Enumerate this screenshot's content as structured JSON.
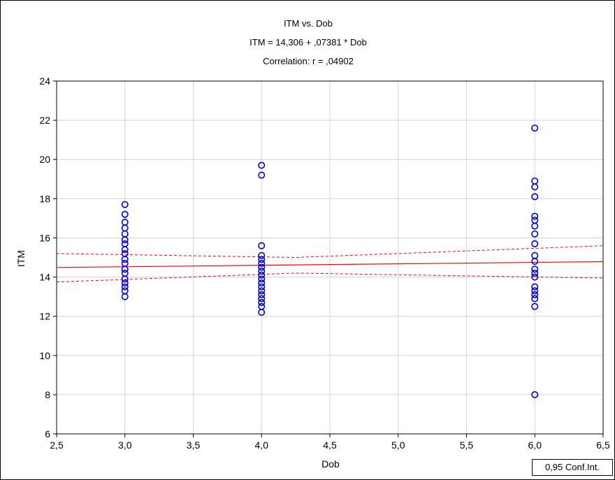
{
  "chart_data": {
    "type": "scatter",
    "title": "ITM      vs. Dob",
    "subtitle": "ITM      = 14,306 + ,07381 * Dob",
    "correlation": "Correlation: r = ,04902",
    "xlabel": "Dob",
    "ylabel": "ITM",
    "xlim": [
      2.5,
      6.5
    ],
    "ylim": [
      6,
      24
    ],
    "x_ticks": [
      2.5,
      3.0,
      3.5,
      4.0,
      4.5,
      5.0,
      5.5,
      6.0,
      6.5
    ],
    "x_tick_labels": [
      "2,5",
      "3,0",
      "3,5",
      "4,0",
      "4,5",
      "5,0",
      "5,5",
      "6,0",
      "6,5"
    ],
    "y_ticks": [
      6,
      8,
      10,
      12,
      14,
      16,
      18,
      20,
      22,
      24
    ],
    "y_tick_labels": [
      "6",
      "8",
      "10",
      "12",
      "14",
      "16",
      "18",
      "20",
      "22",
      "24"
    ],
    "grid": true,
    "legend": "bottom-right",
    "legend_label": "0,95 Conf.Int.",
    "points_color": "#0000cc",
    "fit_color": "#ff0000",
    "fit": {
      "intercept": 14.306,
      "slope": 0.07381
    },
    "conf_upper": [
      [
        2.5,
        15.2
      ],
      [
        4.25,
        15.0
      ],
      [
        6.5,
        15.6
      ]
    ],
    "conf_lower": [
      [
        2.5,
        13.75
      ],
      [
        4.25,
        14.2
      ],
      [
        6.5,
        13.95
      ]
    ],
    "points": [
      {
        "x": 3,
        "y": 17.7
      },
      {
        "x": 3,
        "y": 17.2
      },
      {
        "x": 3,
        "y": 16.8
      },
      {
        "x": 3,
        "y": 16.5
      },
      {
        "x": 3,
        "y": 16.2
      },
      {
        "x": 3,
        "y": 15.9
      },
      {
        "x": 3,
        "y": 15.7
      },
      {
        "x": 3,
        "y": 15.4
      },
      {
        "x": 3,
        "y": 15.2
      },
      {
        "x": 3,
        "y": 14.9
      },
      {
        "x": 3,
        "y": 14.7
      },
      {
        "x": 3,
        "y": 14.4
      },
      {
        "x": 3,
        "y": 14.2
      },
      {
        "x": 3,
        "y": 13.9
      },
      {
        "x": 3,
        "y": 13.7
      },
      {
        "x": 3,
        "y": 13.5
      },
      {
        "x": 3,
        "y": 13.3
      },
      {
        "x": 3,
        "y": 13.0
      },
      {
        "x": 4,
        "y": 19.7
      },
      {
        "x": 4,
        "y": 19.2
      },
      {
        "x": 4,
        "y": 15.6
      },
      {
        "x": 4,
        "y": 15.1
      },
      {
        "x": 4,
        "y": 14.9
      },
      {
        "x": 4,
        "y": 14.7
      },
      {
        "x": 4,
        "y": 14.5
      },
      {
        "x": 4,
        "y": 14.3
      },
      {
        "x": 4,
        "y": 14.1
      },
      {
        "x": 4,
        "y": 13.9
      },
      {
        "x": 4,
        "y": 13.7
      },
      {
        "x": 4,
        "y": 13.5
      },
      {
        "x": 4,
        "y": 13.3
      },
      {
        "x": 4,
        "y": 13.1
      },
      {
        "x": 4,
        "y": 12.9
      },
      {
        "x": 4,
        "y": 12.7
      },
      {
        "x": 4,
        "y": 12.5
      },
      {
        "x": 4,
        "y": 12.2
      },
      {
        "x": 6,
        "y": 21.6
      },
      {
        "x": 6,
        "y": 18.9
      },
      {
        "x": 6,
        "y": 18.6
      },
      {
        "x": 6,
        "y": 18.1
      },
      {
        "x": 6,
        "y": 17.1
      },
      {
        "x": 6,
        "y": 16.9
      },
      {
        "x": 6,
        "y": 16.6
      },
      {
        "x": 6,
        "y": 16.2
      },
      {
        "x": 6,
        "y": 15.7
      },
      {
        "x": 6,
        "y": 15.1
      },
      {
        "x": 6,
        "y": 14.8
      },
      {
        "x": 6,
        "y": 14.4
      },
      {
        "x": 6,
        "y": 14.2
      },
      {
        "x": 6,
        "y": 14.0
      },
      {
        "x": 6,
        "y": 13.5
      },
      {
        "x": 6,
        "y": 13.3
      },
      {
        "x": 6,
        "y": 13.1
      },
      {
        "x": 6,
        "y": 12.9
      },
      {
        "x": 6,
        "y": 12.5
      },
      {
        "x": 6,
        "y": 8.0
      }
    ]
  }
}
